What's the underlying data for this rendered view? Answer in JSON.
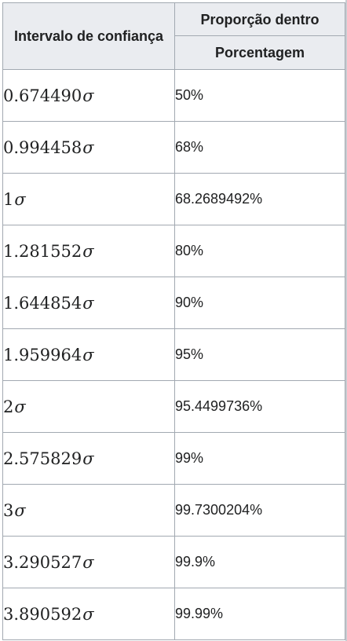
{
  "table": {
    "header": {
      "interval_label": "Intervalo de confiança",
      "proportion_label": "Proporção dentro",
      "percentage_label": "Porcentagem"
    },
    "sigma_symbol": "σ",
    "rows": [
      {
        "interval": "0.674490",
        "percent": "50%"
      },
      {
        "interval": "0.994458",
        "percent": "68%"
      },
      {
        "interval": "1",
        "percent": "68.2689492%"
      },
      {
        "interval": "1.281552",
        "percent": "80%"
      },
      {
        "interval": "1.644854",
        "percent": "90%"
      },
      {
        "interval": "1.959964",
        "percent": "95%"
      },
      {
        "interval": "2",
        "percent": "95.4499736%"
      },
      {
        "interval": "2.575829",
        "percent": "99%"
      },
      {
        "interval": "3",
        "percent": "99.7300204%"
      },
      {
        "interval": "3.290527",
        "percent": "99.9%"
      },
      {
        "interval": "3.890592",
        "percent": "99.99%"
      }
    ]
  }
}
